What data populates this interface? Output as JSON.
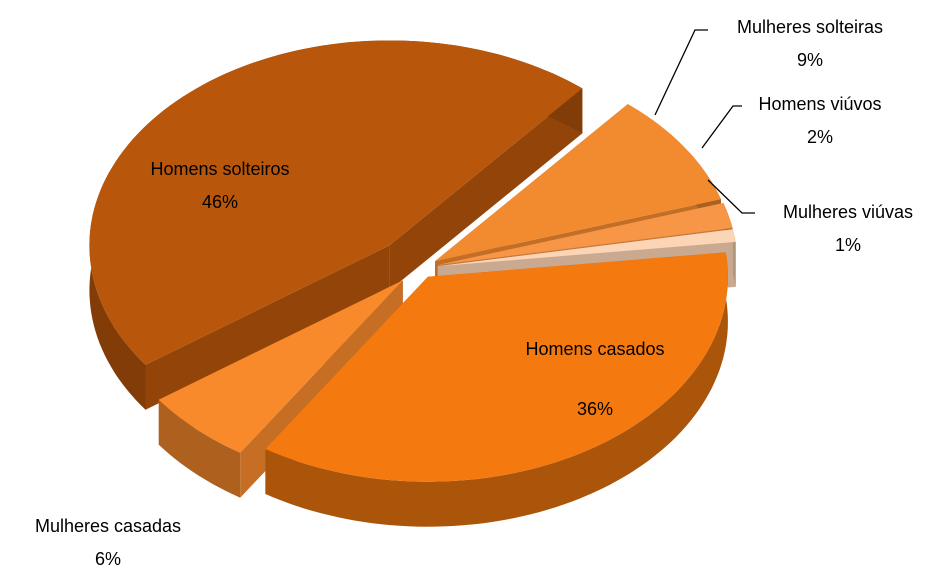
{
  "chart_data": {
    "type": "pie",
    "categories": [
      "Mulheres solteiras",
      "Homens viúvos",
      "Mulheres viúvas",
      "Homens casados",
      "Mulheres casadas",
      "Homens solteiros"
    ],
    "values": [
      9,
      2,
      1,
      36,
      6,
      46
    ],
    "value_labels": [
      "9%",
      "2%",
      "1%",
      "36%",
      "6%",
      "46%"
    ],
    "colors": [
      "#f28a30",
      "#f79646",
      "#fbd5b5",
      "#f47a10",
      "#f88a2c",
      "#b8560b"
    ]
  }
}
